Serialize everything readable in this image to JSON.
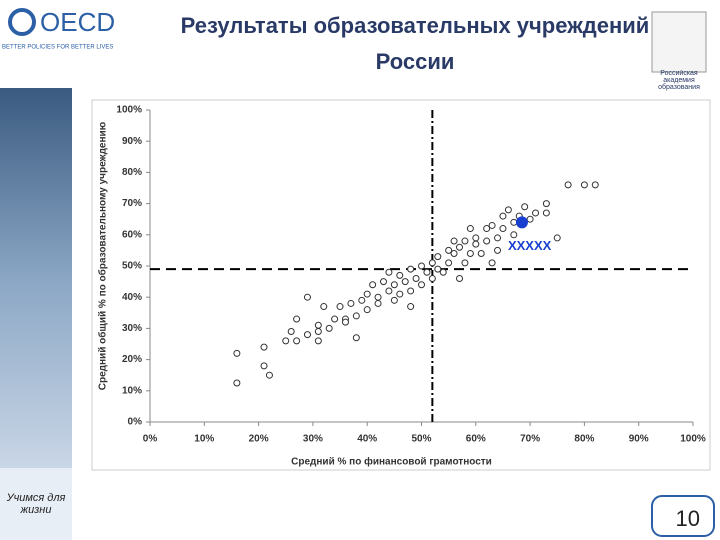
{
  "slide": {
    "logo": "OECD",
    "logo_tagline": "BETTER POLICIES FOR BETTER LIVES",
    "crest_caption": "Российская академия образования",
    "motto": "Учимся для жизни",
    "page_number": "10"
  },
  "chart_data": {
    "type": "scatter",
    "title": "Результаты образовательных учреждений России",
    "x_label": "Средний % по финансовой грамотности",
    "y_label": "Средний общий % по образовательному учреждению",
    "color": "#333333",
    "x": [
      16,
      16,
      21,
      21,
      22,
      25,
      26,
      27,
      27,
      29,
      29,
      31,
      31,
      32,
      31,
      33,
      34,
      35,
      36,
      36,
      37,
      38,
      38,
      39,
      40,
      40,
      41,
      42,
      42,
      43,
      44,
      44,
      45,
      45,
      46,
      46,
      47,
      48,
      48,
      48,
      49,
      50,
      50,
      51,
      52,
      52,
      53,
      53,
      54,
      55,
      55,
      56,
      56,
      57,
      57,
      58,
      58,
      59,
      59,
      60,
      60,
      61,
      62,
      62,
      63,
      63,
      64,
      64,
      65,
      65,
      66,
      67,
      67,
      68,
      69,
      70,
      71,
      73,
      73,
      75,
      77,
      80,
      82
    ],
    "values": [
      12.5,
      22,
      18,
      24,
      15,
      26,
      29,
      26,
      33,
      40,
      28,
      31,
      26,
      37,
      29,
      30,
      33,
      37,
      33,
      32,
      38,
      27,
      34,
      39,
      36,
      41,
      44,
      38,
      40,
      45,
      42,
      48,
      39,
      44,
      47,
      41,
      45,
      37,
      49,
      42,
      46,
      50,
      44,
      48,
      51,
      46,
      49,
      53,
      48,
      55,
      51,
      58,
      54,
      46,
      56,
      51,
      58,
      54,
      62,
      57,
      59,
      54,
      62,
      58,
      51,
      63,
      55,
      59,
      66,
      62,
      68,
      64,
      60,
      66,
      69,
      65,
      67,
      70,
      67,
      59,
      76,
      76,
      76
    ],
    "highlight": {
      "label": "XXXXX",
      "x": 68.5,
      "y": 64,
      "color": "#1a3fd0"
    },
    "vline": 52,
    "hline": 49,
    "xlim": [
      0,
      100
    ],
    "ylim": [
      0,
      100
    ],
    "xticks": [
      {
        "value": 0,
        "label": "0%"
      },
      {
        "value": 10,
        "label": "10%"
      },
      {
        "value": 20,
        "label": "20%"
      },
      {
        "value": 30,
        "label": "30%"
      },
      {
        "value": 40,
        "label": "40%"
      },
      {
        "value": 50,
        "label": "50%"
      },
      {
        "value": 60,
        "label": "60%"
      },
      {
        "value": 70,
        "label": "70%"
      },
      {
        "value": 80,
        "label": "80%"
      },
      {
        "value": 90,
        "label": "90%"
      },
      {
        "value": 100,
        "label": "100%"
      }
    ],
    "yticks": [
      {
        "value": 0,
        "label": "0%"
      },
      {
        "value": 10,
        "label": "10%"
      },
      {
        "value": 20,
        "label": "20%"
      },
      {
        "value": 30,
        "label": "30%"
      },
      {
        "value": 40,
        "label": "40%"
      },
      {
        "value": 50,
        "label": "50%"
      },
      {
        "value": 60,
        "label": "60%"
      },
      {
        "value": 70,
        "label": "70%"
      },
      {
        "value": 80,
        "label": "80%"
      },
      {
        "value": 90,
        "label": "90%"
      },
      {
        "value": 100,
        "label": "100%"
      }
    ]
  }
}
